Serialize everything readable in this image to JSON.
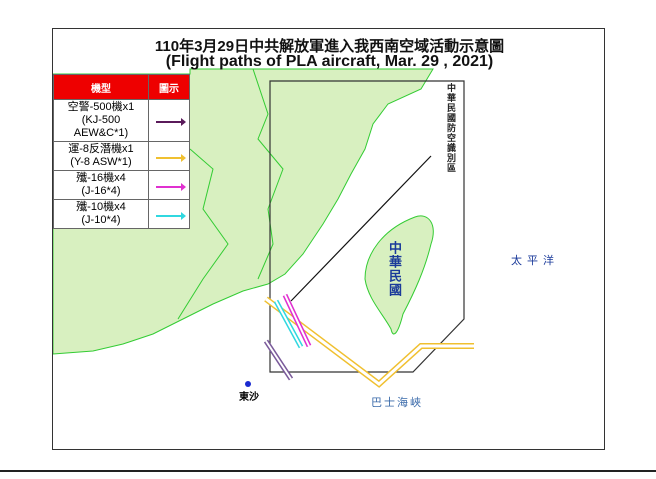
{
  "title": {
    "zh": "110年3月29日中共解放軍進入我西南空域活動示意圖",
    "en": "(Flight paths of PLA aircraft, Mar. 29 , 2021)"
  },
  "legend": {
    "header": [
      "機型",
      "圖示"
    ],
    "items": [
      {
        "lines": [
          "空警-500機x1",
          "(KJ-500",
          "AEW&C*1)"
        ],
        "color": "#5a1a5a"
      },
      {
        "lines": [
          "運-8反潛機x1",
          "(Y-8 ASW*1)"
        ],
        "color": "#f0c030"
      },
      {
        "lines": [
          "殲-16機x4",
          "(J-16*4)"
        ],
        "color": "#e030d0"
      },
      {
        "lines": [
          "殲-10機x4",
          "(J-10*4)"
        ],
        "color": "#30d8e0"
      }
    ]
  },
  "labels": {
    "adiz": "中華民國防空識別區",
    "taiwan": "中華民國",
    "pacific": "太平洋",
    "bashi": "巴士海峽",
    "dongsha": "東沙"
  },
  "colors": {
    "land": "#d8f0c0",
    "border": "#33cc33",
    "label": "#1a3a9a"
  }
}
